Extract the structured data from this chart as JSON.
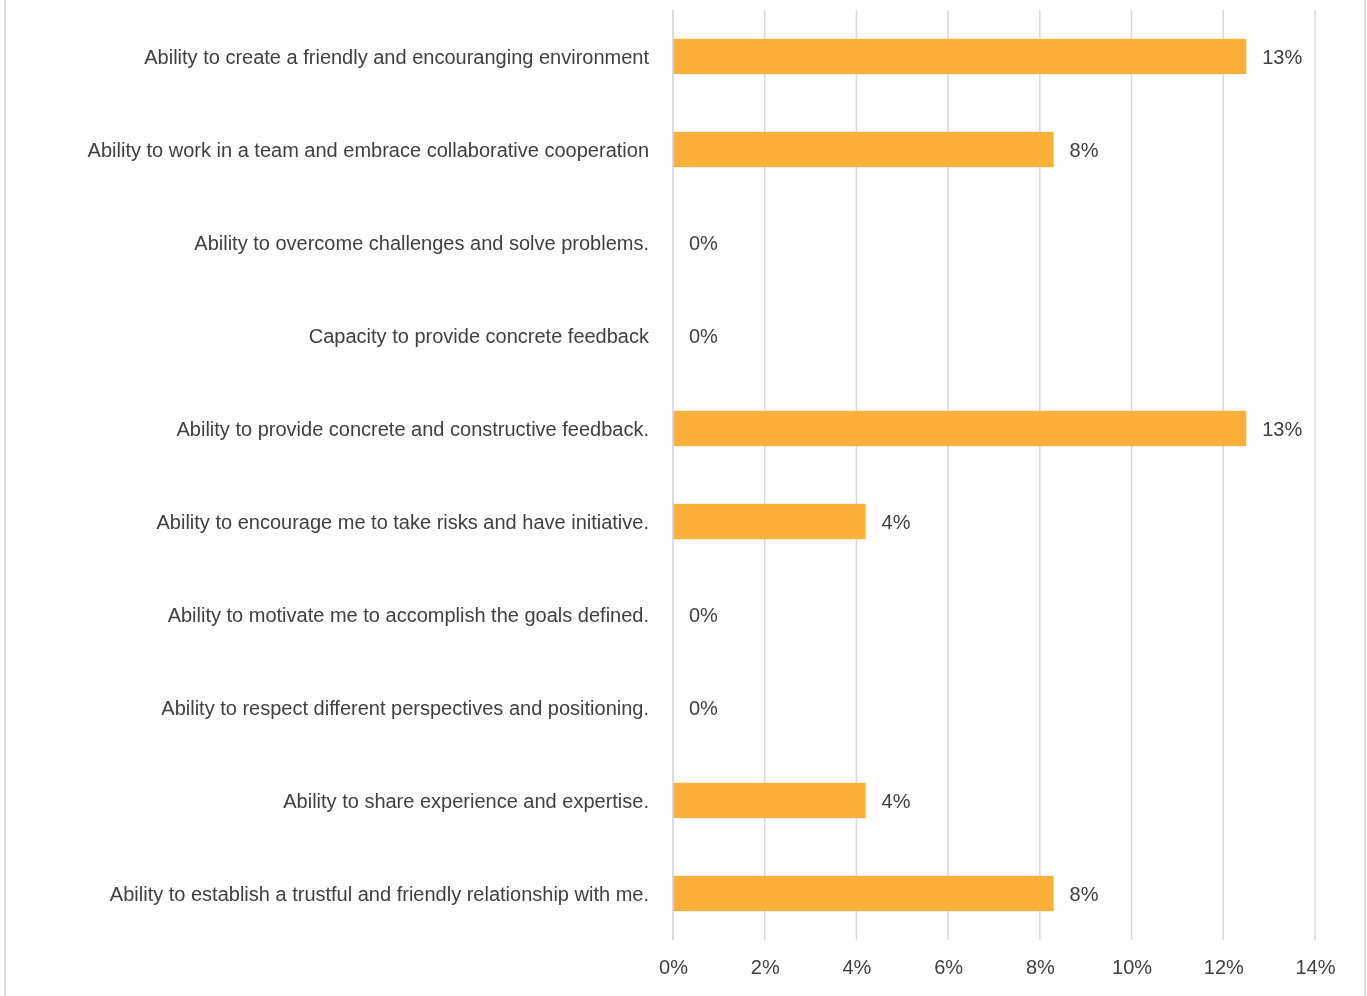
{
  "chart_data": {
    "type": "bar",
    "orientation": "horizontal",
    "categories": [
      "Ability to create a friendly and encouranging environment",
      "Ability to work in a team and embrace collaborative cooperation",
      "Ability to overcome challenges and solve problems.",
      "Capacity to provide concrete feedback",
      "Ability to provide concrete and constructive feedback.",
      "Ability to encourage me to take risks and have initiative.",
      "Ability to motivate me to accomplish the goals defined.",
      "Ability to respect different perspectives and positioning.",
      "Ability to share experience and expertise.",
      "Ability to establish a trustful and friendly relationship with me."
    ],
    "values": [
      12.5,
      8.3,
      0,
      0,
      12.5,
      4.2,
      0,
      0,
      4.2,
      8.3
    ],
    "value_labels": [
      "13%",
      "8%",
      "0%",
      "0%",
      "13%",
      "4%",
      "0%",
      "0%",
      "4%",
      "8%"
    ],
    "color": "#fbb03b",
    "xlim": [
      0,
      14
    ],
    "xticks": [
      {
        "value": 0,
        "label": "0%"
      },
      {
        "value": 2,
        "label": "2%"
      },
      {
        "value": 4,
        "label": "4%"
      },
      {
        "value": 6,
        "label": "6%"
      },
      {
        "value": 8,
        "label": "8%"
      },
      {
        "value": 10,
        "label": "10%"
      },
      {
        "value": 12,
        "label": "12%"
      },
      {
        "value": 14,
        "label": "14%"
      }
    ],
    "grid": "x"
  }
}
